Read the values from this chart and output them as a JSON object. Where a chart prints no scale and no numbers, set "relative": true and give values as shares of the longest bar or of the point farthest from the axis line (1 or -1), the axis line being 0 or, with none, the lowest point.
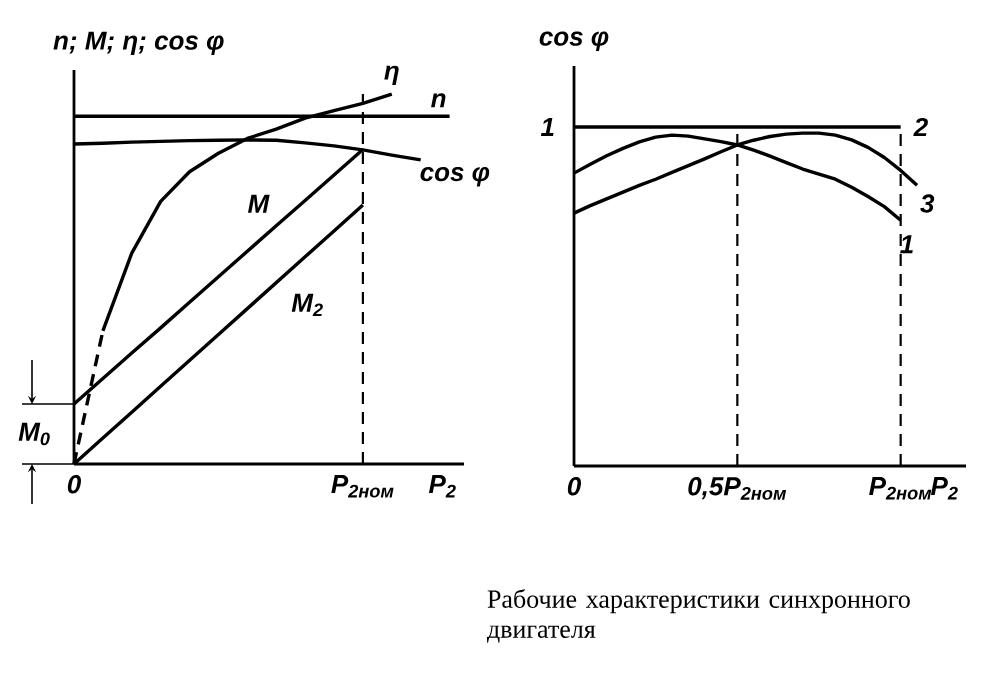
{
  "chart_data": [
    {
      "type": "line",
      "relative": true,
      "ylabel": "n; M; η; cos φ",
      "xlabel": "P$_{2}$",
      "categories": [
        "0",
        null,
        null,
        null,
        null,
        null,
        null,
        null,
        null,
        null,
        "P$_{2ном}$",
        null,
        null,
        null
      ],
      "ref_lines": [
        {
          "axis": "x",
          "value": "P$_{2ном}$",
          "line_style": "dashed"
        }
      ],
      "annotations": [
        {
          "text": "M$_{0}$",
          "x": "0",
          "y": 0.162
        }
      ],
      "series": [
        {
          "name": "n",
          "color": "#000000",
          "line_style": "solid",
          "values": [
            0.94,
            0.94,
            0.94,
            0.94,
            0.94,
            0.94,
            0.94,
            0.94,
            0.94,
            0.94,
            0.94,
            0.94,
            0.94,
            0.94
          ]
        },
        {
          "name": "cos φ",
          "color": "#000000",
          "line_style": "solid",
          "values": [
            0.865,
            0.867,
            0.87,
            0.872,
            0.874,
            0.875,
            0.876,
            0.875,
            0.868,
            0.86,
            0.849,
            0.835,
            0.822,
            null
          ]
        },
        {
          "color": "#000000",
          "line_style": "dashed",
          "values": [
            0,
            0.36,
            null,
            null,
            null,
            null,
            null,
            null,
            null,
            null,
            null,
            null,
            null,
            null
          ]
        },
        {
          "name": "η",
          "color": "#000000",
          "line_style": "solid",
          "values": [
            null,
            0.36,
            0.57,
            0.71,
            0.79,
            0.84,
            0.88,
            0.905,
            0.935,
            0.955,
            0.975,
            1.0,
            null,
            null
          ]
        },
        {
          "name": "M",
          "color": "#000000",
          "line_style": "solid",
          "values": [
            0.162,
            0.231,
            0.3,
            0.368,
            0.437,
            0.506,
            0.575,
            0.644,
            0.712,
            0.781,
            0.85,
            null,
            null,
            null
          ]
        },
        {
          "name": "M$_{2}$",
          "color": "#000000",
          "line_style": "solid",
          "values": [
            0,
            0.07,
            0.14,
            0.21,
            0.28,
            0.35,
            0.42,
            0.49,
            0.56,
            0.63,
            0.7,
            null,
            null,
            null
          ]
        }
      ]
    },
    {
      "type": "line",
      "relative": true,
      "ylabel": "cos φ",
      "xlabel": "P$_{2}$",
      "categories": [
        "0",
        null,
        null,
        null,
        null,
        null,
        null,
        null,
        null,
        null,
        "0,5P$_{2ном}$",
        null,
        null,
        null,
        null,
        null,
        null,
        null,
        null,
        null,
        "P$_{2ном}$",
        null,
        null,
        null,
        null
      ],
      "ref_lines": [
        {
          "axis": "x",
          "value": "0,5P$_{2ном}$",
          "line_style": "dashed"
        },
        {
          "axis": "x",
          "value": "P$_{2ном}$",
          "line_style": "dashed"
        }
      ],
      "annotations": [
        "1",
        "Рабочие характеристики синхронного двигателя"
      ],
      "series": [
        {
          "name": "2",
          "color": "#000000",
          "line_style": "solid",
          "values": [
            1,
            1,
            1,
            1,
            1,
            1,
            1,
            1,
            1,
            1,
            1,
            1,
            1,
            1,
            1,
            1,
            1,
            1,
            1,
            1,
            1,
            null,
            null,
            null,
            null
          ]
        },
        {
          "name": "3",
          "color": "#000000",
          "line_style": "solid",
          "values": [
            0.746,
            0.768,
            0.788,
            0.808,
            0.828,
            0.846,
            0.866,
            0.886,
            0.906,
            0.927,
            0.947,
            0.961,
            0.972,
            0.979,
            0.982,
            0.982,
            0.976,
            0.962,
            0.94,
            0.91,
            0.872,
            0.828,
            null,
            null,
            null
          ]
        },
        {
          "name": "1",
          "color": "#000000",
          "line_style": "solid",
          "values": [
            0.864,
            0.89,
            0.915,
            0.937,
            0.956,
            0.97,
            0.976,
            0.973,
            0.965,
            0.957,
            0.947,
            0.932,
            0.914,
            0.895,
            0.876,
            0.861,
            0.846,
            0.822,
            0.795,
            0.765,
            0.725,
            null,
            null,
            null,
            null
          ]
        }
      ]
    }
  ]
}
